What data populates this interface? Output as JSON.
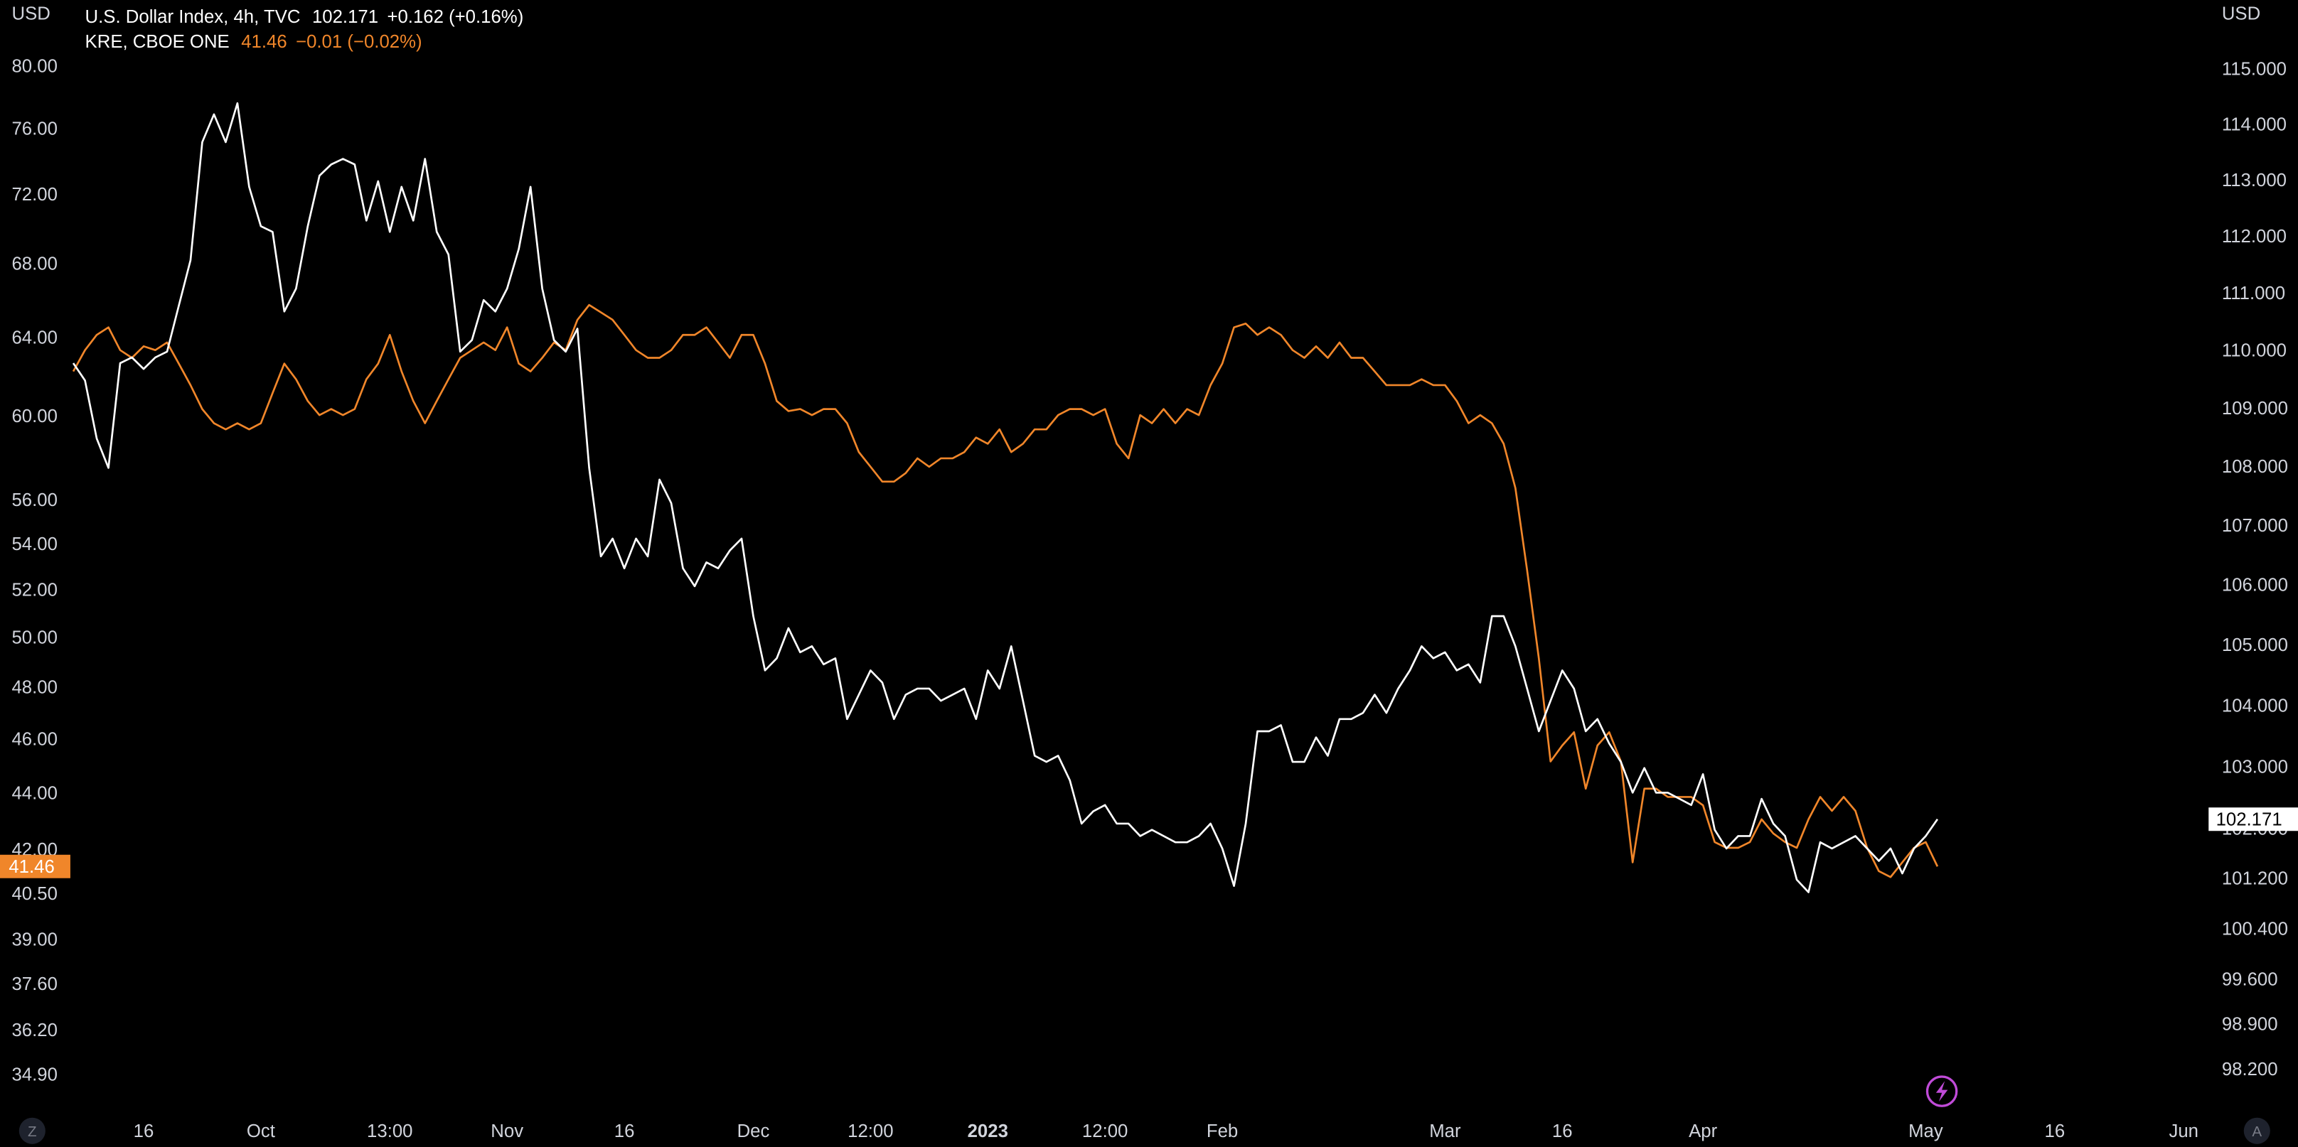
{
  "chart_data": {
    "type": "line",
    "categories": [
      null,
      null,
      null,
      null,
      null,
      null,
      "16",
      null,
      null,
      null,
      null,
      null,
      null,
      null,
      null,
      null,
      "Oct",
      null,
      null,
      null,
      null,
      null,
      null,
      null,
      null,
      null,
      null,
      "13:00",
      null,
      null,
      null,
      null,
      null,
      null,
      null,
      null,
      null,
      "Nov",
      null,
      null,
      null,
      null,
      null,
      null,
      null,
      null,
      null,
      "16",
      null,
      null,
      null,
      null,
      null,
      null,
      null,
      null,
      null,
      null,
      "Dec",
      null,
      null,
      null,
      null,
      null,
      null,
      null,
      null,
      null,
      "12:00",
      null,
      null,
      null,
      null,
      null,
      null,
      null,
      null,
      null,
      "2023",
      null,
      null,
      null,
      null,
      null,
      null,
      null,
      null,
      null,
      "12:00",
      null,
      null,
      null,
      null,
      null,
      null,
      null,
      null,
      null,
      "Feb",
      null,
      null,
      null,
      null,
      null,
      null,
      null,
      null,
      null,
      null,
      null,
      null,
      null,
      null,
      null,
      null,
      null,
      null,
      "Mar",
      null,
      null,
      null,
      null,
      null,
      null,
      null,
      null,
      null,
      "16",
      null,
      null,
      null,
      null,
      null,
      null,
      null,
      null,
      null,
      null,
      null,
      "Apr",
      null,
      null,
      null,
      null,
      null,
      null,
      null,
      null,
      null,
      null,
      null,
      null,
      null,
      null,
      null,
      null,
      null,
      null,
      "May",
      null,
      null,
      null,
      null,
      null,
      null,
      null,
      null,
      null,
      null,
      "16",
      null,
      null,
      null,
      null,
      null,
      null,
      null,
      null,
      null,
      null,
      "Jun"
    ],
    "series": [
      {
        "name": "U.S. Dollar Index, 4h, TVC",
        "change": "+0.162 (+0.16%)",
        "color": "#ffffff",
        "axis": "y2",
        "values": [
          109.8,
          109.5,
          108.5,
          108.0,
          109.8,
          109.9,
          109.7,
          109.9,
          110.0,
          110.8,
          111.6,
          113.7,
          114.2,
          113.7,
          114.4,
          112.9,
          112.2,
          112.1,
          110.7,
          111.1,
          112.2,
          113.1,
          113.3,
          113.4,
          113.3,
          112.3,
          113.0,
          112.1,
          112.9,
          112.3,
          113.4,
          112.1,
          111.7,
          110.0,
          110.2,
          110.9,
          110.7,
          111.1,
          111.8,
          112.9,
          111.1,
          110.2,
          110.0,
          110.4,
          108.0,
          106.5,
          106.8,
          106.3,
          106.8,
          106.5,
          107.8,
          107.4,
          106.3,
          106.0,
          106.4,
          106.3,
          106.6,
          106.8,
          105.5,
          104.6,
          104.8,
          105.3,
          104.9,
          105.0,
          104.7,
          104.8,
          103.8,
          104.2,
          104.6,
          104.4,
          103.8,
          104.2,
          104.3,
          104.3,
          104.1,
          104.2,
          104.3,
          103.8,
          104.6,
          104.3,
          105.0,
          104.1,
          103.2,
          103.1,
          103.2,
          102.8,
          102.1,
          102.3,
          102.4,
          102.1,
          102.1,
          101.9,
          102.0,
          101.9,
          101.8,
          101.8,
          101.9,
          102.1,
          101.7,
          101.1,
          102.1,
          103.6,
          103.6,
          103.7,
          103.1,
          103.1,
          103.5,
          103.2,
          103.8,
          103.8,
          103.9,
          104.2,
          103.9,
          104.3,
          104.6,
          105.0,
          104.8,
          104.9,
          104.6,
          104.7,
          104.4,
          105.5,
          105.5,
          105.0,
          104.3,
          103.6,
          104.1,
          104.6,
          104.3,
          103.6,
          103.8,
          103.4,
          103.1,
          102.6,
          103.0,
          102.6,
          102.6,
          102.5,
          102.4,
          102.9,
          102.0,
          101.7,
          101.9,
          101.9,
          102.5,
          102.1,
          101.9,
          101.2,
          101.0,
          101.8,
          101.7,
          101.8,
          101.9,
          101.7,
          101.5,
          101.7,
          101.3,
          101.7,
          101.9,
          102.171,
          null,
          null,
          null,
          null,
          null,
          null,
          null,
          null,
          null,
          null,
          null,
          null,
          null,
          null,
          null,
          null,
          null,
          null,
          null,
          null,
          null
        ]
      },
      {
        "name": "KRE, CBOE ONE",
        "change": "−0.01 (−0.02%)",
        "color": "#f0862a",
        "axis": "y",
        "values": [
          62.3,
          63.4,
          64.2,
          64.6,
          63.4,
          63.0,
          63.6,
          63.4,
          63.8,
          62.7,
          61.6,
          60.4,
          59.7,
          59.4,
          59.7,
          59.4,
          59.7,
          61.2,
          62.7,
          61.9,
          60.8,
          60.1,
          60.4,
          60.1,
          60.4,
          61.9,
          62.7,
          64.2,
          62.3,
          60.8,
          59.7,
          60.8,
          61.9,
          63.0,
          63.4,
          63.8,
          63.4,
          64.6,
          62.7,
          62.3,
          63.0,
          63.8,
          63.4,
          65.0,
          65.8,
          65.4,
          65.0,
          64.2,
          63.4,
          63.0,
          63.0,
          63.4,
          64.2,
          64.2,
          64.6,
          63.8,
          63.0,
          64.2,
          64.2,
          62.7,
          60.8,
          60.3,
          60.4,
          60.1,
          60.4,
          60.4,
          59.7,
          58.3,
          57.6,
          56.9,
          56.9,
          57.3,
          58.0,
          57.6,
          58.0,
          58.0,
          58.3,
          59.0,
          58.7,
          59.4,
          58.3,
          58.7,
          59.4,
          59.4,
          60.1,
          60.4,
          60.4,
          60.1,
          60.4,
          58.7,
          58.0,
          60.1,
          59.7,
          60.4,
          59.7,
          60.4,
          60.1,
          61.6,
          62.7,
          64.6,
          64.8,
          64.2,
          64.6,
          64.2,
          63.4,
          63.0,
          63.6,
          63.0,
          63.8,
          63.0,
          63.0,
          62.3,
          61.6,
          61.6,
          61.6,
          61.9,
          61.6,
          61.6,
          60.8,
          59.7,
          60.1,
          59.7,
          58.7,
          56.6,
          52.9,
          49.2,
          45.2,
          45.8,
          46.3,
          44.2,
          45.8,
          46.3,
          45.2,
          41.6,
          44.2,
          44.2,
          43.9,
          43.9,
          43.9,
          43.6,
          42.3,
          42.1,
          42.1,
          42.3,
          43.1,
          42.6,
          42.3,
          42.1,
          43.1,
          43.9,
          43.4,
          43.9,
          43.4,
          42.1,
          41.3,
          41.1,
          41.6,
          42.1,
          42.3,
          41.46,
          null,
          null,
          null,
          null,
          null,
          null,
          null,
          null,
          null,
          null,
          null,
          null,
          null,
          null,
          null,
          null,
          null,
          null,
          null,
          null,
          null
        ]
      }
    ],
    "ylabel": "USD",
    "y2label": "USD",
    "ylog": true,
    "y2log": true,
    "ylim": [
      33.76,
      84.56
    ],
    "yticks": [
      {
        "value": 80,
        "label": "80.00"
      },
      {
        "value": 76,
        "label": "76.00"
      },
      {
        "value": 72,
        "label": "72.00"
      },
      {
        "value": 68,
        "label": "68.00"
      },
      {
        "value": 64,
        "label": "64.00"
      },
      {
        "value": 60,
        "label": "60.00"
      },
      {
        "value": 56,
        "label": "56.00"
      },
      {
        "value": 54,
        "label": "54.00"
      },
      {
        "value": 52,
        "label": "52.00"
      },
      {
        "value": 50,
        "label": "50.00"
      },
      {
        "value": 48,
        "label": "48.00"
      },
      {
        "value": 46,
        "label": "46.00"
      },
      {
        "value": 44,
        "label": "44.00"
      },
      {
        "value": 42,
        "label": "42.00"
      },
      {
        "value": 40.5,
        "label": "40.50"
      },
      {
        "value": 39,
        "label": "39.00"
      },
      {
        "value": 37.6,
        "label": "37.60"
      },
      {
        "value": 36.2,
        "label": "36.20"
      },
      {
        "value": 34.9,
        "label": "34.90"
      }
    ],
    "y2lim": [
      97.49,
      116.28
    ],
    "y2ticks": [
      {
        "value": 115,
        "label": "115.000"
      },
      {
        "value": 114,
        "label": "114.000"
      },
      {
        "value": 113,
        "label": "113.000"
      },
      {
        "value": 112,
        "label": "112.000"
      },
      {
        "value": 111,
        "label": "111.000"
      },
      {
        "value": 110,
        "label": "110.000"
      },
      {
        "value": 109,
        "label": "109.000"
      },
      {
        "value": 108,
        "label": "108.000"
      },
      {
        "value": 107,
        "label": "107.000"
      },
      {
        "value": 106,
        "label": "106.000"
      },
      {
        "value": 105,
        "label": "105.000"
      },
      {
        "value": 104,
        "label": "104.000"
      },
      {
        "value": 103,
        "label": "103.000"
      },
      {
        "value": 102,
        "label": "102.000"
      },
      {
        "value": 101.2,
        "label": "101.200"
      },
      {
        "value": 100.4,
        "label": "100.400"
      },
      {
        "value": 99.6,
        "label": "99.600"
      },
      {
        "value": 98.9,
        "label": "98.900"
      },
      {
        "value": 98.2,
        "label": "98.200"
      }
    ],
    "grid": false
  },
  "controls": [
    "Z",
    "A"
  ]
}
